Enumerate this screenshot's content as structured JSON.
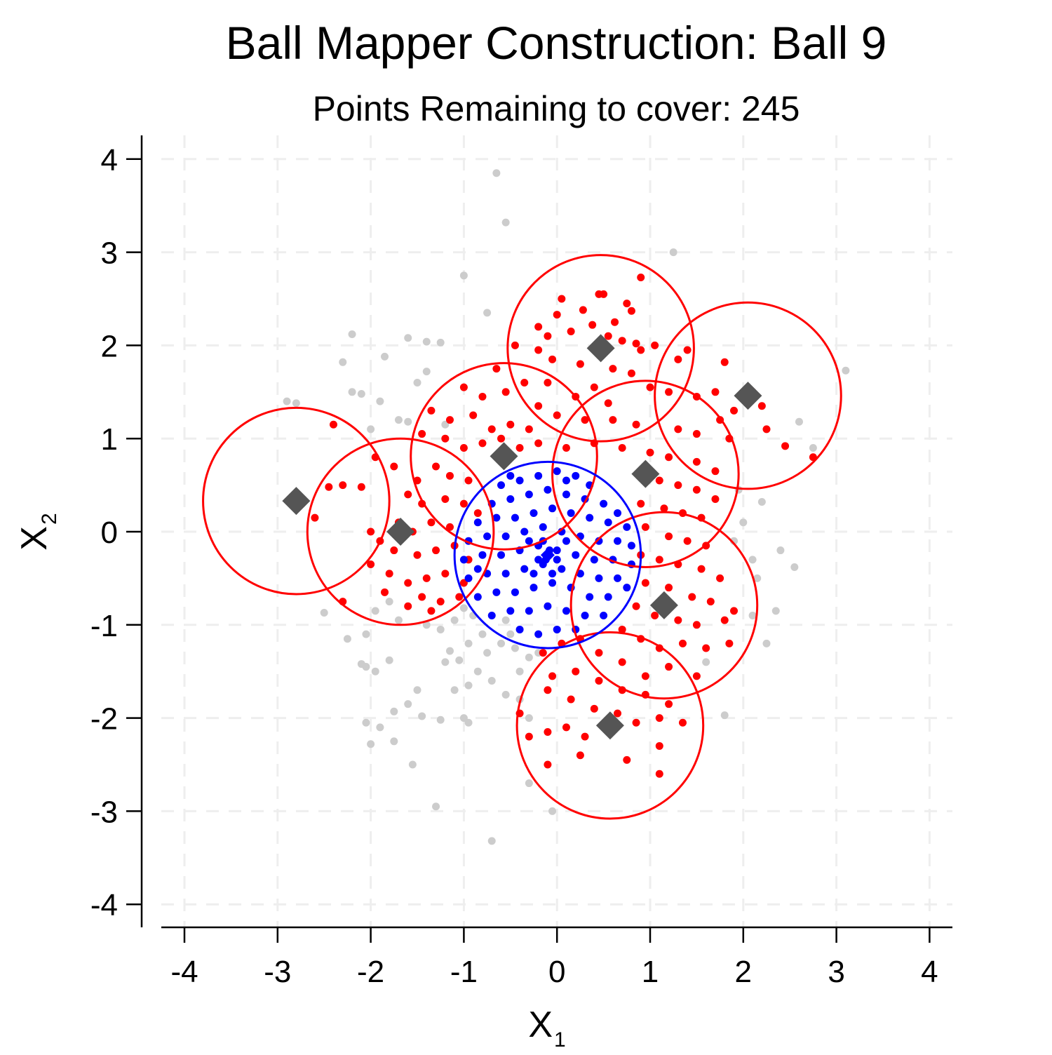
{
  "chart_data": {
    "type": "scatter",
    "title": "Ball Mapper Construction: Ball 9",
    "subtitle": "Points Remaining to cover: 245",
    "xlabel": "X",
    "xlabel_sub": "1",
    "ylabel": "X",
    "ylabel_sub": "2",
    "xlim": [
      -4.25,
      4.25
    ],
    "ylim": [
      -4.25,
      4.25
    ],
    "xticks": [
      -4,
      -3,
      -2,
      -1,
      0,
      1,
      2,
      3,
      4
    ],
    "yticks": [
      -4,
      -3,
      -2,
      -1,
      0,
      1,
      2,
      3,
      4
    ],
    "xtick_labels": [
      "-4",
      "-3",
      "-2",
      "-1",
      "0",
      "1",
      "2",
      "3",
      "4"
    ],
    "ytick_labels": [
      "-4",
      "-3",
      "-2",
      "-1",
      "0",
      "1",
      "2",
      "3",
      "4"
    ],
    "grid": true,
    "ball_radius": 1.0,
    "colors": {
      "uncovered_points": "#cccccc",
      "covered_points": "#ff0000",
      "current_ball_points": "#0000ff",
      "previous_balls": "#ff0000",
      "current_ball": "#0000ff",
      "centers": "#555555",
      "grid": "#eeeeee"
    },
    "previous_ball_centers": [
      {
        "x": -2.8,
        "y": 0.33
      },
      {
        "x": -1.68,
        "y": 0.0
      },
      {
        "x": -0.57,
        "y": 0.81
      },
      {
        "x": 0.47,
        "y": 1.97
      },
      {
        "x": 2.05,
        "y": 1.46
      },
      {
        "x": 0.95,
        "y": 0.62
      },
      {
        "x": 1.15,
        "y": -0.79
      },
      {
        "x": 0.57,
        "y": -2.08
      }
    ],
    "current_ball_center": {
      "x": -0.1,
      "y": -0.25
    },
    "uncovered_points": [
      [
        -0.65,
        3.85
      ],
      [
        -0.55,
        3.32
      ],
      [
        -1.0,
        2.75
      ],
      [
        -0.75,
        2.35
      ],
      [
        1.25,
        3.0
      ],
      [
        -2.2,
        2.12
      ],
      [
        -2.3,
        1.82
      ],
      [
        -1.6,
        2.08
      ],
      [
        -1.4,
        2.04
      ],
      [
        -1.25,
        2.03
      ],
      [
        -1.85,
        1.88
      ],
      [
        -1.4,
        1.72
      ],
      [
        -1.5,
        1.6
      ],
      [
        -2.2,
        1.5
      ],
      [
        -2.1,
        1.48
      ],
      [
        -1.9,
        1.4
      ],
      [
        -2.9,
        1.4
      ],
      [
        -2.8,
        1.38
      ],
      [
        -1.7,
        1.2
      ],
      [
        -1.6,
        1.18
      ],
      [
        -2.0,
        1.1
      ],
      [
        -1.2,
        1.15
      ],
      [
        3.1,
        1.73
      ],
      [
        2.6,
        1.18
      ],
      [
        2.75,
        0.9
      ],
      [
        1.95,
        0.45
      ],
      [
        2.2,
        0.32
      ],
      [
        2.0,
        0.1
      ],
      [
        1.9,
        -0.1
      ],
      [
        2.1,
        -0.3
      ],
      [
        2.4,
        -0.2
      ],
      [
        2.55,
        -0.38
      ],
      [
        2.15,
        -0.5
      ],
      [
        2.35,
        -0.85
      ],
      [
        2.25,
        -1.2
      ],
      [
        2.1,
        -0.9
      ],
      [
        1.8,
        -1.97
      ],
      [
        1.6,
        -1.4
      ],
      [
        -2.5,
        -0.87
      ],
      [
        -2.25,
        -1.15
      ],
      [
        -2.05,
        -1.1
      ],
      [
        -1.95,
        -0.85
      ],
      [
        -1.8,
        -0.75
      ],
      [
        -1.7,
        -0.95
      ],
      [
        -1.4,
        -1.0
      ],
      [
        -1.25,
        -1.05
      ],
      [
        -1.1,
        -0.95
      ],
      [
        -1.0,
        -0.82
      ],
      [
        -0.9,
        -0.9
      ],
      [
        -0.95,
        -1.2
      ],
      [
        -1.15,
        -1.28
      ],
      [
        -1.2,
        -1.4
      ],
      [
        -1.05,
        -1.38
      ],
      [
        -0.8,
        -1.1
      ],
      [
        -0.75,
        -1.3
      ],
      [
        -0.6,
        -1.2
      ],
      [
        -0.5,
        -1.1
      ],
      [
        -0.85,
        -1.5
      ],
      [
        -0.7,
        -1.6
      ],
      [
        -0.55,
        -1.75
      ],
      [
        -0.4,
        -1.5
      ],
      [
        -0.3,
        -1.35
      ],
      [
        -0.95,
        -1.65
      ],
      [
        -1.1,
        -1.7
      ],
      [
        -1.5,
        -1.7
      ],
      [
        -1.6,
        -1.85
      ],
      [
        -2.05,
        -1.45
      ],
      [
        -2.1,
        -1.42
      ],
      [
        -1.95,
        -1.5
      ],
      [
        -1.8,
        -1.38
      ],
      [
        -2.05,
        -2.05
      ],
      [
        -1.9,
        -2.1
      ],
      [
        -2.0,
        -2.28
      ],
      [
        -1.75,
        -1.93
      ],
      [
        -1.45,
        -1.98
      ],
      [
        -1.25,
        -2.02
      ],
      [
        -1.0,
        -2.0
      ],
      [
        -0.95,
        -2.05
      ],
      [
        -1.75,
        -2.25
      ],
      [
        -1.55,
        -2.5
      ],
      [
        -0.4,
        -1.8
      ],
      [
        -0.3,
        -2.0
      ],
      [
        -0.3,
        -2.7
      ],
      [
        -0.05,
        -3.0
      ],
      [
        -1.3,
        -2.95
      ],
      [
        -0.7,
        -3.32
      ],
      [
        -0.55,
        -0.95
      ],
      [
        -0.45,
        -1.25
      ],
      [
        -0.2,
        -1.3
      ]
    ],
    "covered_points": [
      [
        0.45,
        2.55
      ],
      [
        0.5,
        2.55
      ],
      [
        0.9,
        2.73
      ],
      [
        0.05,
        2.5
      ],
      [
        0.0,
        2.33
      ],
      [
        0.75,
        2.45
      ],
      [
        0.8,
        2.37
      ],
      [
        0.28,
        2.38
      ],
      [
        0.62,
        2.25
      ],
      [
        0.38,
        2.22
      ],
      [
        0.55,
        2.1
      ],
      [
        0.15,
        2.15
      ],
      [
        0.7,
        2.05
      ],
      [
        -0.2,
        2.2
      ],
      [
        -0.1,
        2.1
      ],
      [
        0.85,
        2.02
      ],
      [
        0.9,
        1.95
      ],
      [
        1.05,
        2.0
      ],
      [
        1.4,
        1.95
      ],
      [
        1.3,
        1.85
      ],
      [
        -0.45,
        2.0
      ],
      [
        -0.2,
        1.95
      ],
      [
        -0.05,
        1.85
      ],
      [
        0.25,
        1.8
      ],
      [
        0.6,
        1.75
      ],
      [
        0.8,
        1.7
      ],
      [
        -0.65,
        1.75
      ],
      [
        -0.35,
        1.6
      ],
      [
        -0.1,
        1.6
      ],
      [
        0.4,
        1.55
      ],
      [
        1.0,
        1.55
      ],
      [
        1.2,
        1.5
      ],
      [
        0.2,
        1.45
      ],
      [
        0.55,
        1.38
      ],
      [
        -1.0,
        1.55
      ],
      [
        -0.8,
        1.45
      ],
      [
        -0.55,
        1.5
      ],
      [
        -0.2,
        1.35
      ],
      [
        0.0,
        1.25
      ],
      [
        0.3,
        1.2
      ],
      [
        0.6,
        1.2
      ],
      [
        0.85,
        1.15
      ],
      [
        1.5,
        1.45
      ],
      [
        1.7,
        1.5
      ],
      [
        1.8,
        1.82
      ],
      [
        2.1,
        1.5
      ],
      [
        2.2,
        1.35
      ],
      [
        2.25,
        1.1
      ],
      [
        2.45,
        0.92
      ],
      [
        2.75,
        0.8
      ],
      [
        1.9,
        1.3
      ],
      [
        1.75,
        1.2
      ],
      [
        1.85,
        1.0
      ],
      [
        1.5,
        1.05
      ],
      [
        1.3,
        1.1
      ],
      [
        -1.35,
        1.3
      ],
      [
        -1.15,
        1.2
      ],
      [
        -0.9,
        1.25
      ],
      [
        -0.7,
        1.1
      ],
      [
        -0.5,
        1.15
      ],
      [
        -0.3,
        1.1
      ],
      [
        -1.45,
        1.05
      ],
      [
        -1.2,
        1.0
      ],
      [
        -1.0,
        0.9
      ],
      [
        -0.8,
        0.95
      ],
      [
        -0.6,
        1.0
      ],
      [
        -0.4,
        0.9
      ],
      [
        -0.2,
        0.95
      ],
      [
        0.1,
        0.9
      ],
      [
        0.4,
        0.95
      ],
      [
        0.7,
        0.9
      ],
      [
        1.0,
        0.85
      ],
      [
        1.2,
        0.8
      ],
      [
        1.5,
        0.75
      ],
      [
        1.7,
        0.65
      ],
      [
        -2.4,
        1.15
      ],
      [
        -2.45,
        0.48
      ],
      [
        -2.3,
        0.5
      ],
      [
        -2.1,
        0.48
      ],
      [
        -2.6,
        0.15
      ],
      [
        -1.95,
        0.8
      ],
      [
        -1.75,
        0.7
      ],
      [
        -1.5,
        0.55
      ],
      [
        -1.3,
        0.7
      ],
      [
        -1.15,
        0.6
      ],
      [
        -0.95,
        0.55
      ],
      [
        -1.6,
        0.4
      ],
      [
        -1.45,
        0.3
      ],
      [
        -1.2,
        0.35
      ],
      [
        -1.0,
        0.3
      ],
      [
        -0.85,
        0.2
      ],
      [
        -1.7,
        0.1
      ],
      [
        -1.55,
        0.0
      ],
      [
        -1.35,
        0.1
      ],
      [
        -1.15,
        0.05
      ],
      [
        -2.0,
        0.0
      ],
      [
        -1.9,
        -0.1
      ],
      [
        -1.75,
        -0.2
      ],
      [
        -1.5,
        -0.25
      ],
      [
        -1.3,
        -0.2
      ],
      [
        -1.1,
        -0.15
      ],
      [
        -0.95,
        -0.3
      ],
      [
        -2.0,
        -0.35
      ],
      [
        -1.8,
        -0.45
      ],
      [
        -1.6,
        -0.55
      ],
      [
        -1.4,
        -0.5
      ],
      [
        -1.2,
        -0.45
      ],
      [
        -1.0,
        -0.55
      ],
      [
        -1.85,
        -0.65
      ],
      [
        -1.45,
        -0.7
      ],
      [
        -1.25,
        -0.75
      ],
      [
        -1.05,
        -0.7
      ],
      [
        -2.3,
        -0.75
      ],
      [
        -1.6,
        -0.8
      ],
      [
        -1.35,
        -0.85
      ],
      [
        1.1,
        0.55
      ],
      [
        1.3,
        0.5
      ],
      [
        1.5,
        0.45
      ],
      [
        1.7,
        0.35
      ],
      [
        0.9,
        0.3
      ],
      [
        1.15,
        0.25
      ],
      [
        1.35,
        0.2
      ],
      [
        1.55,
        0.15
      ],
      [
        0.95,
        0.05
      ],
      [
        1.2,
        -0.05
      ],
      [
        1.4,
        -0.1
      ],
      [
        1.6,
        -0.15
      ],
      [
        0.9,
        -0.25
      ],
      [
        1.1,
        -0.3
      ],
      [
        1.3,
        -0.35
      ],
      [
        1.55,
        -0.4
      ],
      [
        1.75,
        -0.5
      ],
      [
        0.95,
        -0.55
      ],
      [
        1.2,
        -0.6
      ],
      [
        1.45,
        -0.7
      ],
      [
        1.65,
        -0.75
      ],
      [
        0.85,
        -0.8
      ],
      [
        1.05,
        -0.9
      ],
      [
        1.3,
        -0.95
      ],
      [
        1.5,
        -1.0
      ],
      [
        1.8,
        -0.95
      ],
      [
        1.9,
        -0.85
      ],
      [
        1.85,
        -1.2
      ],
      [
        1.6,
        -1.25
      ],
      [
        1.35,
        -1.2
      ],
      [
        1.1,
        -1.25
      ],
      [
        0.9,
        -1.15
      ],
      [
        0.7,
        -1.05
      ],
      [
        1.5,
        -1.55
      ],
      [
        1.2,
        -1.45
      ],
      [
        0.95,
        -1.55
      ],
      [
        0.7,
        -1.4
      ],
      [
        0.45,
        -1.3
      ],
      [
        0.25,
        -1.15
      ],
      [
        0.05,
        -1.2
      ],
      [
        -0.15,
        -1.3
      ],
      [
        -0.05,
        -1.55
      ],
      [
        0.2,
        -1.5
      ],
      [
        0.45,
        -1.6
      ],
      [
        0.7,
        -1.7
      ],
      [
        0.95,
        -1.75
      ],
      [
        1.2,
        -1.85
      ],
      [
        -0.1,
        -1.7
      ],
      [
        0.15,
        -1.8
      ],
      [
        0.4,
        -1.9
      ],
      [
        0.65,
        -1.95
      ],
      [
        0.85,
        -2.05
      ],
      [
        1.1,
        -2.0
      ],
      [
        1.35,
        -2.05
      ],
      [
        1.1,
        -2.3
      ],
      [
        0.3,
        -2.2
      ],
      [
        0.1,
        -2.1
      ],
      [
        -0.1,
        -2.15
      ],
      [
        0.25,
        -2.4
      ],
      [
        -0.1,
        -2.5
      ],
      [
        0.75,
        -2.45
      ],
      [
        1.1,
        -2.6
      ],
      [
        -0.3,
        -2.2
      ],
      [
        -0.4,
        -1.95
      ]
    ],
    "current_ball_points": [
      [
        -0.6,
        0.5
      ],
      [
        -0.4,
        0.55
      ],
      [
        -0.2,
        0.6
      ],
      [
        0.0,
        0.65
      ],
      [
        0.2,
        0.6
      ],
      [
        0.35,
        0.5
      ],
      [
        -0.7,
        0.3
      ],
      [
        -0.5,
        0.35
      ],
      [
        -0.3,
        0.4
      ],
      [
        -0.1,
        0.45
      ],
      [
        0.1,
        0.4
      ],
      [
        0.3,
        0.35
      ],
      [
        0.5,
        0.3
      ],
      [
        0.65,
        0.2
      ],
      [
        -0.85,
        0.1
      ],
      [
        -0.65,
        0.15
      ],
      [
        -0.45,
        0.15
      ],
      [
        -0.25,
        0.2
      ],
      [
        -0.05,
        0.25
      ],
      [
        0.15,
        0.2
      ],
      [
        0.35,
        0.15
      ],
      [
        0.55,
        0.1
      ],
      [
        0.75,
        0.05
      ],
      [
        -0.95,
        -0.1
      ],
      [
        -0.75,
        -0.05
      ],
      [
        -0.55,
        -0.05
      ],
      [
        -0.35,
        0.0
      ],
      [
        -0.15,
        0.05
      ],
      [
        0.05,
        0.0
      ],
      [
        0.25,
        -0.05
      ],
      [
        0.45,
        -0.1
      ],
      [
        0.65,
        -0.1
      ],
      [
        0.8,
        -0.15
      ],
      [
        -1.0,
        -0.3
      ],
      [
        -0.8,
        -0.25
      ],
      [
        -0.6,
        -0.25
      ],
      [
        -0.4,
        -0.2
      ],
      [
        -0.2,
        -0.15
      ],
      [
        0.0,
        -0.2
      ],
      [
        0.2,
        -0.25
      ],
      [
        0.4,
        -0.3
      ],
      [
        0.6,
        -0.3
      ],
      [
        0.8,
        -0.35
      ],
      [
        -0.95,
        -0.5
      ],
      [
        -0.75,
        -0.45
      ],
      [
        -0.55,
        -0.45
      ],
      [
        -0.35,
        -0.4
      ],
      [
        -0.15,
        -0.35
      ],
      [
        0.05,
        -0.4
      ],
      [
        0.25,
        -0.45
      ],
      [
        0.45,
        -0.5
      ],
      [
        0.65,
        -0.5
      ],
      [
        0.75,
        -0.6
      ],
      [
        -0.85,
        -0.7
      ],
      [
        -0.65,
        -0.65
      ],
      [
        -0.45,
        -0.65
      ],
      [
        -0.25,
        -0.6
      ],
      [
        -0.05,
        -0.55
      ],
      [
        0.15,
        -0.6
      ],
      [
        0.35,
        -0.7
      ],
      [
        0.55,
        -0.7
      ],
      [
        -0.7,
        -0.9
      ],
      [
        -0.5,
        -0.85
      ],
      [
        -0.3,
        -0.85
      ],
      [
        -0.1,
        -0.8
      ],
      [
        0.1,
        -0.85
      ],
      [
        0.3,
        -0.9
      ],
      [
        0.5,
        -0.9
      ],
      [
        -0.4,
        -1.05
      ],
      [
        -0.2,
        -1.1
      ],
      [
        0.0,
        -1.05
      ],
      [
        0.2,
        -1.05
      ],
      [
        -0.1,
        -0.25
      ],
      [
        -0.12,
        -0.3
      ],
      [
        -0.08,
        -0.2
      ],
      [
        -0.2,
        -0.3
      ],
      [
        0.0,
        -0.3
      ],
      [
        -0.15,
        -0.1
      ],
      [
        -0.05,
        -0.45
      ],
      [
        -0.25,
        -0.45
      ],
      [
        0.1,
        -0.1
      ],
      [
        -0.3,
        -0.1
      ],
      [
        -0.5,
        0.6
      ],
      [
        0.1,
        0.55
      ],
      [
        -0.85,
        -0.4
      ]
    ]
  }
}
